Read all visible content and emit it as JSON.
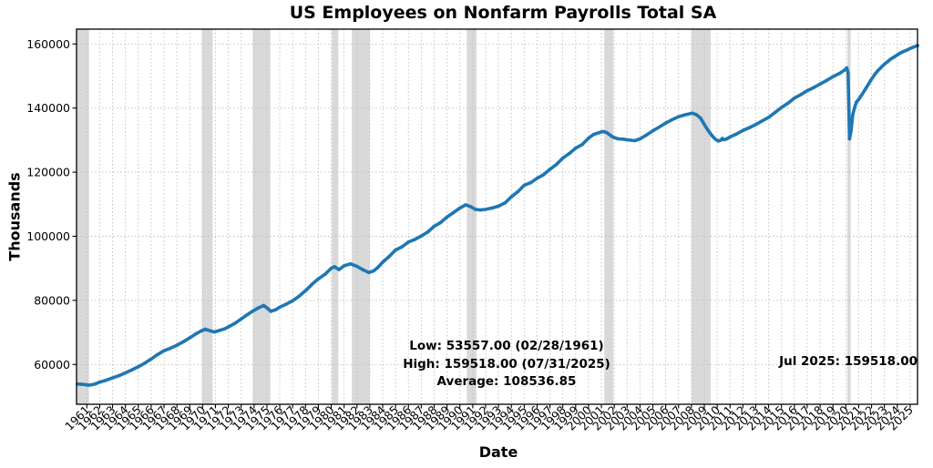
{
  "chart_data": {
    "type": "line",
    "title": "US Employees on Nonfarm Payrolls Total SA",
    "xlabel": "Date",
    "ylabel": "Thousands",
    "legend": "none",
    "grid": true,
    "xlim": [
      1960.2,
      2025.574
    ],
    "ylim": [
      47586,
      164631
    ],
    "x_ticks": [
      "1961",
      "1962",
      "1963",
      "1964",
      "1965",
      "1966",
      "1967",
      "1968",
      "1969",
      "1970",
      "1971",
      "1972",
      "1973",
      "1974",
      "1975",
      "1976",
      "1977",
      "1978",
      "1979",
      "1980",
      "1981",
      "1982",
      "1983",
      "1984",
      "1985",
      "1986",
      "1987",
      "1988",
      "1989",
      "1990",
      "1991",
      "1992",
      "1993",
      "1994",
      "1995",
      "1996",
      "1997",
      "1998",
      "1999",
      "2000",
      "2001",
      "2002",
      "2003",
      "2004",
      "2005",
      "2006",
      "2007",
      "2008",
      "2009",
      "2010",
      "2011",
      "2012",
      "2013",
      "2014",
      "2015",
      "2016",
      "2017",
      "2018",
      "2019",
      "2020",
      "2021",
      "2022",
      "2023",
      "2024",
      "2025"
    ],
    "x_tick_start_year": 1961,
    "y_ticks": [
      60000,
      80000,
      100000,
      120000,
      140000,
      160000
    ],
    "y_tick_labels": [
      "60000",
      "80000",
      "100000",
      "120000",
      "140000",
      "160000"
    ],
    "line_color": "#1f77b4",
    "band_color": "#808080",
    "band_opacity": 0.3,
    "grid_color": "#bfbfbf",
    "recession_bands": [
      [
        1960.2,
        1961.17
      ],
      [
        1969.95,
        1970.78
      ],
      [
        1973.9,
        1975.27
      ],
      [
        1980.05,
        1980.55
      ],
      [
        1981.6,
        1983.0
      ],
      [
        1990.54,
        1991.29
      ],
      [
        2001.22,
        2001.93
      ],
      [
        2008.0,
        2009.5
      ],
      [
        2020.12,
        2020.38
      ]
    ],
    "stats": {
      "low_value": 53557.0,
      "low_date": "02/28/1961",
      "high_value": 159518.0,
      "high_date": "07/31/2025",
      "average_value": 108536.85,
      "low_label": "Low: 53557.00 (02/28/1961)",
      "high_label": "High: 159518.00 (07/31/2025)",
      "average_label": "Average: 108536.85",
      "latest_label": "Jul 2025: 159518.00"
    },
    "series": [
      {
        "name": "US Employees on Nonfarm Payrolls Total SA",
        "points": [
          [
            1960.27,
            53900
          ],
          [
            1960.6,
            53800
          ],
          [
            1960.92,
            53690
          ],
          [
            1961.12,
            53557
          ],
          [
            1961.33,
            53650
          ],
          [
            1961.67,
            53950
          ],
          [
            1962.0,
            54500
          ],
          [
            1962.5,
            55100
          ],
          [
            1963.0,
            55800
          ],
          [
            1963.5,
            56500
          ],
          [
            1964.0,
            57400
          ],
          [
            1964.5,
            58300
          ],
          [
            1965.0,
            59300
          ],
          [
            1965.5,
            60400
          ],
          [
            1966.0,
            61700
          ],
          [
            1966.5,
            63100
          ],
          [
            1967.0,
            64300
          ],
          [
            1967.5,
            65100
          ],
          [
            1968.0,
            66000
          ],
          [
            1968.5,
            67100
          ],
          [
            1969.0,
            68300
          ],
          [
            1969.5,
            69600
          ],
          [
            1969.92,
            70500
          ],
          [
            1970.2,
            71000
          ],
          [
            1970.6,
            70500
          ],
          [
            1970.92,
            70150
          ],
          [
            1971.3,
            70600
          ],
          [
            1971.7,
            71100
          ],
          [
            1972.0,
            71700
          ],
          [
            1972.5,
            72800
          ],
          [
            1973.0,
            74200
          ],
          [
            1973.5,
            75600
          ],
          [
            1973.87,
            76600
          ],
          [
            1974.3,
            77600
          ],
          [
            1974.75,
            78400
          ],
          [
            1975.05,
            77500
          ],
          [
            1975.3,
            76600
          ],
          [
            1975.7,
            77100
          ],
          [
            1976.0,
            77900
          ],
          [
            1976.5,
            78800
          ],
          [
            1977.0,
            79900
          ],
          [
            1977.5,
            81300
          ],
          [
            1978.0,
            83000
          ],
          [
            1978.5,
            85000
          ],
          [
            1979.0,
            86700
          ],
          [
            1979.5,
            88100
          ],
          [
            1980.0,
            90000
          ],
          [
            1980.25,
            90500
          ],
          [
            1980.6,
            89600
          ],
          [
            1981.0,
            90800
          ],
          [
            1981.5,
            91400
          ],
          [
            1982.0,
            90600
          ],
          [
            1982.5,
            89500
          ],
          [
            1982.92,
            88700
          ],
          [
            1983.3,
            89200
          ],
          [
            1983.6,
            90200
          ],
          [
            1984.0,
            91900
          ],
          [
            1984.5,
            93700
          ],
          [
            1985.0,
            95700
          ],
          [
            1985.5,
            96700
          ],
          [
            1986.0,
            98200
          ],
          [
            1986.5,
            99000
          ],
          [
            1987.0,
            100100
          ],
          [
            1987.5,
            101300
          ],
          [
            1988.0,
            103100
          ],
          [
            1988.5,
            104300
          ],
          [
            1989.0,
            106000
          ],
          [
            1989.5,
            107400
          ],
          [
            1990.0,
            108800
          ],
          [
            1990.45,
            109800
          ],
          [
            1990.85,
            109200
          ],
          [
            1991.2,
            108400
          ],
          [
            1991.6,
            108200
          ],
          [
            1992.0,
            108400
          ],
          [
            1992.5,
            108800
          ],
          [
            1993.0,
            109400
          ],
          [
            1993.5,
            110400
          ],
          [
            1994.0,
            112300
          ],
          [
            1994.5,
            113900
          ],
          [
            1995.0,
            115900
          ],
          [
            1995.5,
            116700
          ],
          [
            1996.0,
            118100
          ],
          [
            1996.5,
            119200
          ],
          [
            1997.0,
            120900
          ],
          [
            1997.5,
            122400
          ],
          [
            1998.0,
            124400
          ],
          [
            1998.5,
            125800
          ],
          [
            1999.0,
            127500
          ],
          [
            1999.5,
            128600
          ],
          [
            2000.0,
            130600
          ],
          [
            2000.4,
            131800
          ],
          [
            2001.1,
            132700
          ],
          [
            2001.4,
            132400
          ],
          [
            2001.7,
            131500
          ],
          [
            2001.92,
            130900
          ],
          [
            2002.3,
            130400
          ],
          [
            2002.7,
            130300
          ],
          [
            2003.0,
            130100
          ],
          [
            2003.6,
            129820
          ],
          [
            2004.0,
            130400
          ],
          [
            2004.5,
            131600
          ],
          [
            2005.0,
            132900
          ],
          [
            2005.5,
            134100
          ],
          [
            2006.0,
            135300
          ],
          [
            2006.5,
            136400
          ],
          [
            2007.0,
            137300
          ],
          [
            2007.5,
            137900
          ],
          [
            2008.08,
            138400
          ],
          [
            2008.4,
            137900
          ],
          [
            2008.7,
            136900
          ],
          [
            2009.0,
            134900
          ],
          [
            2009.3,
            133000
          ],
          [
            2009.6,
            131400
          ],
          [
            2009.85,
            130300
          ],
          [
            2010.1,
            129750
          ],
          [
            2010.28,
            130000
          ],
          [
            2010.4,
            130500
          ],
          [
            2010.5,
            130100
          ],
          [
            2010.75,
            130400
          ],
          [
            2011.0,
            131000
          ],
          [
            2011.5,
            131900
          ],
          [
            2012.0,
            133000
          ],
          [
            2012.5,
            133900
          ],
          [
            2013.0,
            134900
          ],
          [
            2013.5,
            136000
          ],
          [
            2014.0,
            137100
          ],
          [
            2014.5,
            138600
          ],
          [
            2015.0,
            140200
          ],
          [
            2015.5,
            141500
          ],
          [
            2016.0,
            143100
          ],
          [
            2016.5,
            144200
          ],
          [
            2017.0,
            145400
          ],
          [
            2017.5,
            146400
          ],
          [
            2018.0,
            147500
          ],
          [
            2018.5,
            148600
          ],
          [
            2019.0,
            149800
          ],
          [
            2019.5,
            150800
          ],
          [
            2019.92,
            151900
          ],
          [
            2020.08,
            152500
          ],
          [
            2020.18,
            151100
          ],
          [
            2020.29,
            130400
          ],
          [
            2020.42,
            133100
          ],
          [
            2020.54,
            137900
          ],
          [
            2020.67,
            140000
          ],
          [
            2020.83,
            141900
          ],
          [
            2021.0,
            142700
          ],
          [
            2021.25,
            144200
          ],
          [
            2021.5,
            145800
          ],
          [
            2021.75,
            147400
          ],
          [
            2022.0,
            149000
          ],
          [
            2022.25,
            150500
          ],
          [
            2022.5,
            151700
          ],
          [
            2022.75,
            152700
          ],
          [
            2023.0,
            153700
          ],
          [
            2023.25,
            154500
          ],
          [
            2023.5,
            155300
          ],
          [
            2023.75,
            155900
          ],
          [
            2024.0,
            156600
          ],
          [
            2024.25,
            157200
          ],
          [
            2024.5,
            157700
          ],
          [
            2024.75,
            158100
          ],
          [
            2025.0,
            158600
          ],
          [
            2025.25,
            159000
          ],
          [
            2025.58,
            159518
          ]
        ]
      }
    ]
  }
}
